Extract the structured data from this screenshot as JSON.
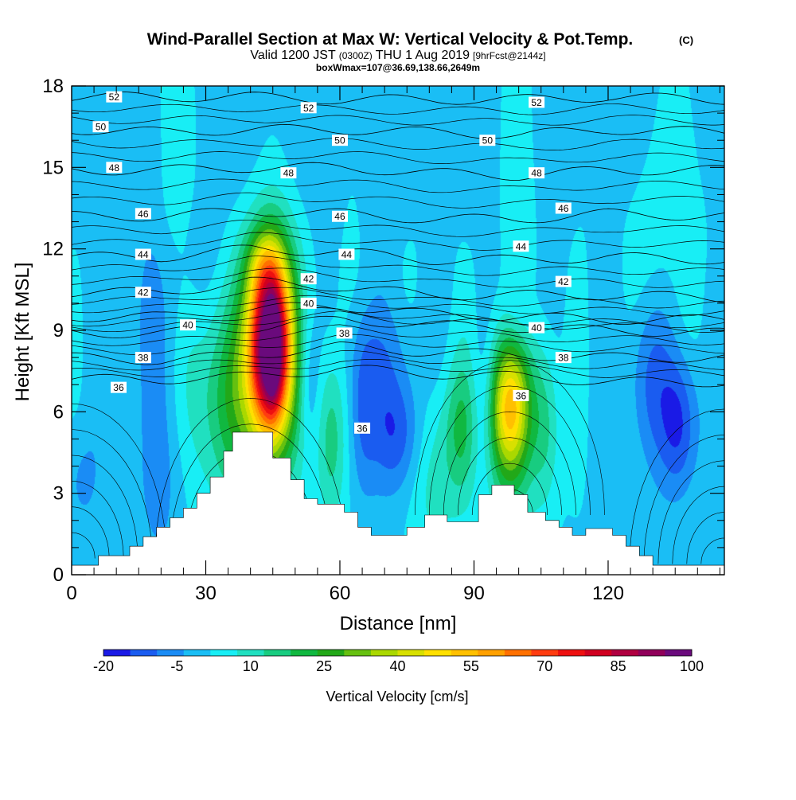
{
  "chart_data": {
    "type": "heatmap",
    "title": {
      "main": "Wind-Parallel Section at Max W: Vertical Velocity & Pot.Temp.",
      "main_unit": "(C)",
      "subtitle_a": "Valid 1200 JST",
      "subtitle_b": "(0300Z)",
      "subtitle_c": "THU 1 Aug 2019",
      "subtitle_d": "[9hrFcst@2144z]",
      "subtitle2": "boxWmax=107@36.69,138.66,2649m"
    },
    "xlabel": "Distance [nm]",
    "ylabel": "Height [Kft MSL]",
    "xlim": [
      0,
      146
    ],
    "ylim": [
      0,
      18
    ],
    "xticks": [
      0,
      30,
      60,
      90,
      120
    ],
    "yticks": [
      0,
      3,
      6,
      9,
      12,
      15,
      18
    ],
    "colorbar": {
      "label": "Vertical Velocity [cm/s]",
      "tick_labels": [
        "-20",
        "-5",
        "10",
        "25",
        "40",
        "55",
        "70",
        "85",
        "100"
      ],
      "colors": [
        "#1a1ae6",
        "#1a5cf0",
        "#1a8cf5",
        "#1abef5",
        "#18eef5",
        "#20e0c0",
        "#18cc80",
        "#10b840",
        "#22a818",
        "#66c010",
        "#aad800",
        "#d8e000",
        "#ffe000",
        "#ffc000",
        "#ffa000",
        "#ff7000",
        "#ff3c10",
        "#ee1010",
        "#d00020",
        "#b00040",
        "#90005a",
        "#6a0a7c"
      ]
    },
    "terrain": [
      [
        0,
        0.35
      ],
      [
        6,
        0.35
      ],
      [
        6,
        0.7
      ],
      [
        13,
        0.7
      ],
      [
        13,
        1.05
      ],
      [
        16,
        1.05
      ],
      [
        16,
        1.4
      ],
      [
        19,
        1.4
      ],
      [
        19,
        1.75
      ],
      [
        22,
        1.75
      ],
      [
        22,
        2.1
      ],
      [
        25,
        2.1
      ],
      [
        25,
        2.45
      ],
      [
        28,
        2.45
      ],
      [
        28,
        3.0
      ],
      [
        31,
        3.0
      ],
      [
        31,
        3.6
      ],
      [
        34,
        3.6
      ],
      [
        34,
        4.55
      ],
      [
        36,
        4.55
      ],
      [
        36,
        5.25
      ],
      [
        45,
        5.25
      ],
      [
        45,
        4.3
      ],
      [
        49,
        4.3
      ],
      [
        49,
        3.5
      ],
      [
        52,
        3.5
      ],
      [
        52,
        2.8
      ],
      [
        55,
        2.8
      ],
      [
        55,
        2.6
      ],
      [
        61,
        2.6
      ],
      [
        61,
        2.3
      ],
      [
        64,
        2.3
      ],
      [
        64,
        1.75
      ],
      [
        67,
        1.75
      ],
      [
        67,
        1.45
      ],
      [
        75,
        1.45
      ],
      [
        75,
        1.75
      ],
      [
        79,
        1.75
      ],
      [
        79,
        2.2
      ],
      [
        84,
        2.2
      ],
      [
        84,
        1.95
      ],
      [
        91,
        1.95
      ],
      [
        91,
        2.95
      ],
      [
        94,
        2.95
      ],
      [
        94,
        3.3
      ],
      [
        99,
        3.3
      ],
      [
        99,
        2.95
      ],
      [
        102,
        2.95
      ],
      [
        102,
        2.3
      ],
      [
        106,
        2.3
      ],
      [
        106,
        2.0
      ],
      [
        109,
        2.0
      ],
      [
        109,
        1.75
      ],
      [
        112,
        1.75
      ],
      [
        112,
        1.45
      ],
      [
        115,
        1.45
      ],
      [
        115,
        1.7
      ],
      [
        121,
        1.7
      ],
      [
        121,
        1.45
      ],
      [
        124,
        1.45
      ],
      [
        124,
        1.05
      ],
      [
        127,
        1.05
      ],
      [
        127,
        0.7
      ],
      [
        130,
        0.7
      ],
      [
        130,
        0.35
      ],
      [
        146,
        0.35
      ]
    ],
    "ww_features": [
      {
        "x": 44.5,
        "y": 8.5,
        "sx": 3.3,
        "sy": 2.4,
        "a": 104
      },
      {
        "x": 45,
        "y": 8.3,
        "sx": 1.0,
        "sy": 1.2,
        "a": 20
      },
      {
        "x": 41,
        "y": 7.2,
        "sx": 9,
        "sy": 3.4,
        "a": 14
      },
      {
        "x": 35,
        "y": 6.5,
        "sx": 5,
        "sy": 2.6,
        "a": 12
      },
      {
        "x": 43,
        "y": 11.4,
        "sx": 3,
        "sy": 0.9,
        "a": 12
      },
      {
        "x": 98,
        "y": 6.2,
        "sx": 3,
        "sy": 1.7,
        "a": 38
      },
      {
        "x": 97,
        "y": 5.5,
        "sx": 5,
        "sy": 2.8,
        "a": 16
      },
      {
        "x": 106,
        "y": 5.6,
        "sx": 2.2,
        "sy": 2.2,
        "a": 12
      },
      {
        "x": 87,
        "y": 5.4,
        "sx": 2.5,
        "sy": 1.8,
        "a": 14
      },
      {
        "x": 58,
        "y": 5,
        "sx": 2.2,
        "sy": 2.2,
        "a": 14
      },
      {
        "x": 81,
        "y": 4,
        "sx": 3.5,
        "sy": 2.5,
        "a": 10
      },
      {
        "x": 73,
        "y": 5.2,
        "sx": 4,
        "sy": 1.5,
        "a": -15
      },
      {
        "x": 65,
        "y": 6,
        "sx": 2.2,
        "sy": 2.2,
        "a": -11
      },
      {
        "x": 92,
        "y": 6.2,
        "sx": 2,
        "sy": 2.4,
        "a": -10
      },
      {
        "x": 53,
        "y": 7.2,
        "sx": 1.8,
        "sy": 1.8,
        "a": -9
      },
      {
        "x": 136,
        "y": 5.6,
        "sx": 3,
        "sy": 1.8,
        "a": -17
      },
      {
        "x": 129,
        "y": 7.2,
        "sx": 3.5,
        "sy": 2.2,
        "a": -11
      },
      {
        "x": 100,
        "y": 9.5,
        "sx": 2.5,
        "sy": 1.2,
        "a": -8
      },
      {
        "x": 70,
        "y": 8,
        "sx": 7,
        "sy": 1.5,
        "a": -6
      },
      {
        "x": 20,
        "y": 3.4,
        "sx": 4,
        "sy": 2.4,
        "a": -6
      },
      {
        "x": 16,
        "y": 9,
        "sx": 5,
        "sy": 3,
        "a": -5
      },
      {
        "x": 28,
        "y": 11,
        "sx": 6,
        "sy": 2,
        "a": -4
      },
      {
        "x": 2,
        "y": 3.5,
        "sx": 3,
        "sy": 1.5,
        "a": -6
      },
      {
        "x": 22,
        "y": 15.5,
        "sx": 3,
        "sy": 3,
        "a": 6
      },
      {
        "x": 100,
        "y": 15,
        "sx": 3,
        "sy": 3,
        "a": 5
      },
      {
        "x": 130,
        "y": 13,
        "sx": 4,
        "sy": 3,
        "a": 5
      },
      {
        "x": 140,
        "y": 14.5,
        "sx": 5,
        "sy": 3,
        "a": 3
      }
    ],
    "theta_levels": [
      {
        "v": 36,
        "s": [
          [
            0,
            7.2
          ],
          [
            20,
            7.2
          ],
          [
            40,
            7.3
          ],
          [
            60,
            7.6
          ],
          [
            80,
            7.4
          ],
          [
            100,
            7.3
          ],
          [
            120,
            7.1
          ],
          [
            146,
            7.1
          ]
        ]
      },
      {
        "v": 38,
        "s": [
          [
            0,
            8.0
          ],
          [
            20,
            7.9
          ],
          [
            40,
            8.1
          ],
          [
            60,
            8.4
          ],
          [
            80,
            8.2
          ],
          [
            100,
            8.1
          ],
          [
            120,
            8.0
          ],
          [
            146,
            8.0
          ]
        ]
      },
      {
        "v": 38,
        "s": [
          [
            0,
            8.9
          ],
          [
            20,
            8.9
          ],
          [
            40,
            9.1
          ],
          [
            60,
            9.4
          ],
          [
            80,
            9.2
          ],
          [
            100,
            9.1
          ],
          [
            120,
            9.0
          ],
          [
            146,
            8.9
          ]
        ]
      },
      {
        "v": 40,
        "s": [
          [
            0,
            9.5
          ],
          [
            20,
            9.5
          ],
          [
            40,
            9.8
          ],
          [
            60,
            9.9
          ],
          [
            80,
            9.6
          ],
          [
            100,
            9.5
          ],
          [
            120,
            9.4
          ],
          [
            146,
            9.4
          ]
        ]
      },
      {
        "v": 42,
        "s": [
          [
            0,
            10.4
          ],
          [
            20,
            10.4
          ],
          [
            40,
            10.8
          ],
          [
            60,
            10.6
          ],
          [
            80,
            10.3
          ],
          [
            100,
            10.3
          ],
          [
            120,
            10.3
          ],
          [
            146,
            10.2
          ]
        ]
      },
      {
        "v": 44,
        "s": [
          [
            0,
            11.7
          ],
          [
            20,
            11.7
          ],
          [
            40,
            12.0
          ],
          [
            60,
            11.9
          ],
          [
            80,
            11.6
          ],
          [
            100,
            11.6
          ],
          [
            120,
            11.7
          ],
          [
            146,
            11.6
          ]
        ]
      },
      {
        "v": 46,
        "s": [
          [
            0,
            13.2
          ],
          [
            20,
            13.2
          ],
          [
            40,
            13.4
          ],
          [
            60,
            13.3
          ],
          [
            80,
            13.1
          ],
          [
            100,
            13.1
          ],
          [
            120,
            13.3
          ],
          [
            146,
            13.2
          ]
        ]
      },
      {
        "v": 48,
        "s": [
          [
            0,
            14.9
          ],
          [
            20,
            14.9
          ],
          [
            40,
            15.0
          ],
          [
            60,
            15.0
          ],
          [
            80,
            14.8
          ],
          [
            100,
            14.7
          ],
          [
            120,
            14.9
          ],
          [
            146,
            14.9
          ]
        ]
      },
      {
        "v": 50,
        "s": [
          [
            0,
            16.4
          ],
          [
            20,
            16.3
          ],
          [
            40,
            16.4
          ],
          [
            60,
            16.4
          ],
          [
            80,
            16.3
          ],
          [
            100,
            16.2
          ],
          [
            120,
            16.4
          ],
          [
            146,
            16.3
          ]
        ]
      },
      {
        "v": 52,
        "s": [
          [
            0,
            17.6
          ],
          [
            20,
            17.6
          ],
          [
            40,
            17.6
          ],
          [
            60,
            17.5
          ],
          [
            80,
            17.5
          ],
          [
            100,
            17.5
          ],
          [
            120,
            17.6
          ],
          [
            146,
            17.5
          ]
        ]
      }
    ],
    "contour_labels": [
      {
        "text": "52",
        "x": 9.5,
        "y": 17.6
      },
      {
        "text": "52",
        "x": 53,
        "y": 17.2
      },
      {
        "text": "52",
        "x": 104,
        "y": 17.4
      },
      {
        "text": "50",
        "x": 6.5,
        "y": 16.5
      },
      {
        "text": "50",
        "x": 60,
        "y": 16.0
      },
      {
        "text": "50",
        "x": 93,
        "y": 16.0
      },
      {
        "text": "48",
        "x": 9.5,
        "y": 15.0
      },
      {
        "text": "48",
        "x": 48.5,
        "y": 14.8
      },
      {
        "text": "48",
        "x": 104,
        "y": 14.8
      },
      {
        "text": "46",
        "x": 16,
        "y": 13.3
      },
      {
        "text": "46",
        "x": 60,
        "y": 13.2
      },
      {
        "text": "46",
        "x": 110,
        "y": 13.5
      },
      {
        "text": "44",
        "x": 16,
        "y": 11.8
      },
      {
        "text": "44",
        "x": 61.5,
        "y": 11.8
      },
      {
        "text": "44",
        "x": 100.5,
        "y": 12.1
      },
      {
        "text": "42",
        "x": 16,
        "y": 10.4
      },
      {
        "text": "42",
        "x": 53,
        "y": 10.9
      },
      {
        "text": "42",
        "x": 110,
        "y": 10.8
      },
      {
        "text": "40",
        "x": 26,
        "y": 9.2
      },
      {
        "text": "40",
        "x": 53,
        "y": 10.0
      },
      {
        "text": "40",
        "x": 104,
        "y": 9.1
      },
      {
        "text": "38",
        "x": 16,
        "y": 8.0
      },
      {
        "text": "38",
        "x": 61,
        "y": 8.9
      },
      {
        "text": "38",
        "x": 110,
        "y": 8.0
      },
      {
        "text": "36",
        "x": 10.5,
        "y": 6.9
      },
      {
        "text": "36",
        "x": 65,
        "y": 5.4
      },
      {
        "text": "36",
        "x": 100.5,
        "y": 6.6
      }
    ]
  }
}
